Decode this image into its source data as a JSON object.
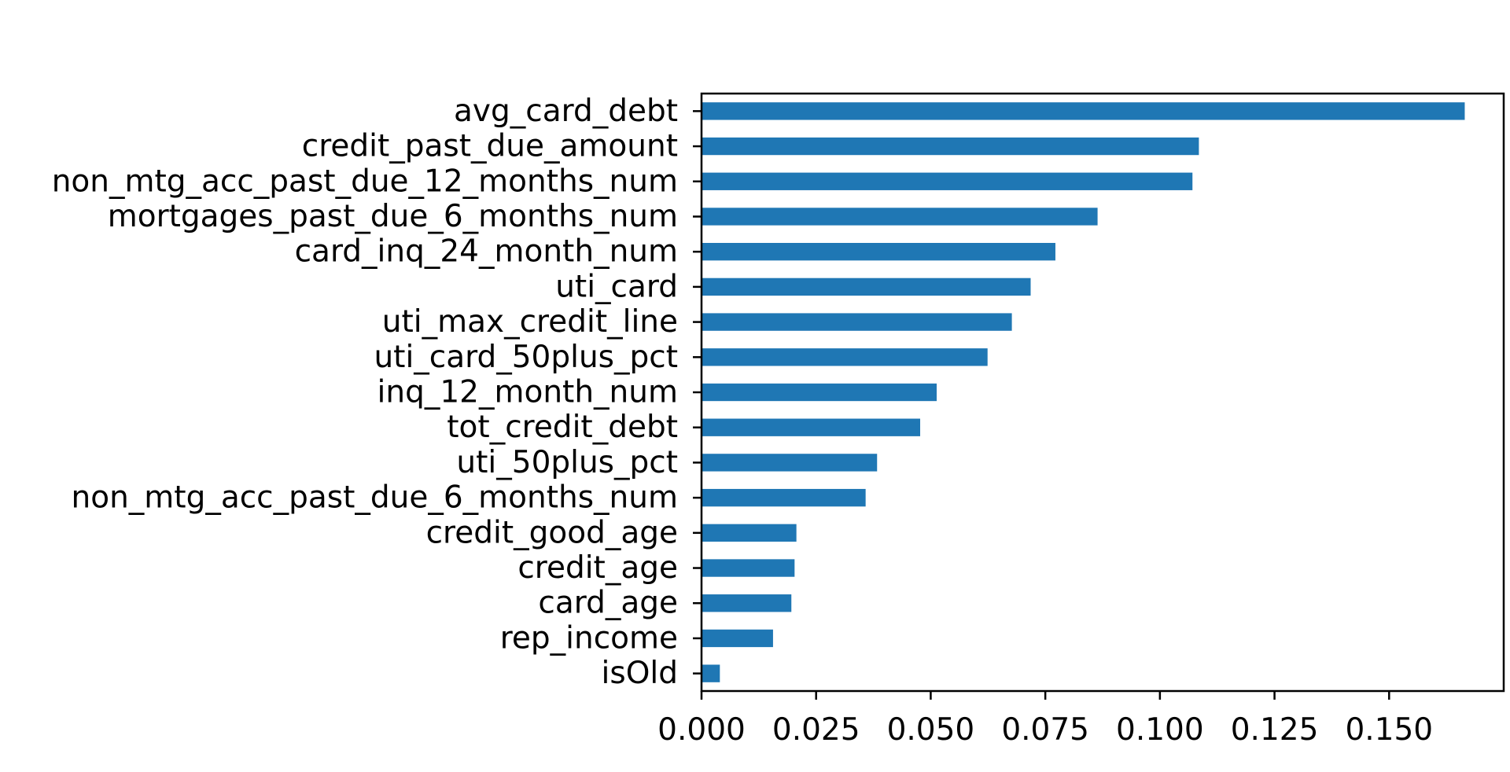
{
  "chart_data": {
    "type": "bar",
    "orientation": "horizontal",
    "categories": [
      "avg_card_debt",
      "credit_past_due_amount",
      "non_mtg_acc_past_due_12_months_num",
      "mortgages_past_due_6_months_num",
      "card_inq_24_month_num",
      "uti_card",
      "uti_max_credit_line",
      "uti_card_50plus_pct",
      "inq_12_month_num",
      "tot_credit_debt",
      "uti_50plus_pct",
      "non_mtg_acc_past_due_6_months_num",
      "credit_good_age",
      "credit_age",
      "card_age",
      "rep_income",
      "isOld"
    ],
    "values": [
      0.1665,
      0.1085,
      0.1071,
      0.0864,
      0.0772,
      0.0718,
      0.0677,
      0.0624,
      0.0513,
      0.0477,
      0.0383,
      0.0358,
      0.0207,
      0.0203,
      0.0196,
      0.0156,
      0.004
    ],
    "xlim": [
      0,
      0.175
    ],
    "xticks": [
      "0.000",
      "0.025",
      "0.050",
      "0.075",
      "0.100",
      "0.125",
      "0.150"
    ],
    "xtick_values": [
      0,
      0.025,
      0.05,
      0.075,
      0.1,
      0.125,
      0.15
    ],
    "title": "",
    "xlabel": "",
    "ylabel": "",
    "grid": false,
    "bar_color": "#1f77b4"
  }
}
